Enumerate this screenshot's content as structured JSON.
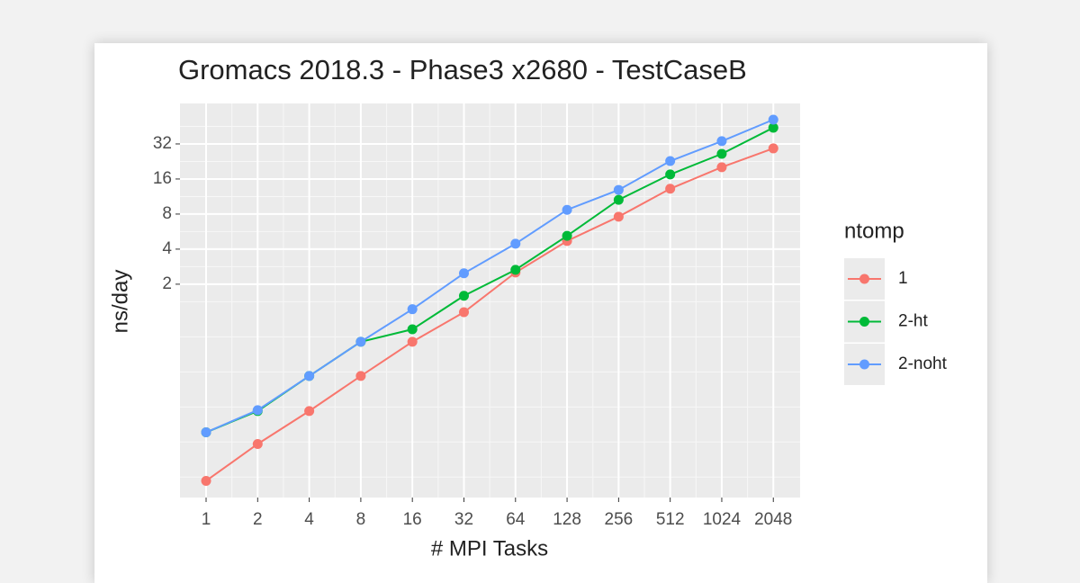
{
  "chart_data": {
    "type": "line",
    "title": "Gromacs 2018.3 - Phase3 x2680 - TestCaseB",
    "x_label": "# MPI Tasks",
    "y_label": "ns/day",
    "legend_title": "ntomp",
    "x": [
      1,
      2,
      4,
      8,
      16,
      32,
      64,
      128,
      256,
      512,
      1024,
      2048
    ],
    "series": [
      {
        "name": "1",
        "color": "#F8766D",
        "values": [
          0.041,
          0.085,
          0.163,
          0.326,
          0.641,
          1.15,
          2.52,
          4.7,
          7.6,
          13.2,
          20.2,
          29.3
        ]
      },
      {
        "name": "2-ht",
        "color": "#00BA38",
        "values": [
          0.107,
          0.163,
          0.326,
          0.641,
          0.82,
          1.59,
          2.66,
          5.2,
          10.6,
          17.5,
          26.3,
          44.1
        ]
      },
      {
        "name": "2-noht",
        "color": "#619CFF",
        "values": [
          0.107,
          0.166,
          0.326,
          0.641,
          1.22,
          2.48,
          4.45,
          8.7,
          12.9,
          22.8,
          33.8,
          51.7
        ]
      }
    ],
    "xlim": [
      0.704,
      2935
    ],
    "ylim": [
      0.0295,
      71.2
    ],
    "xticks": [
      1,
      2,
      4,
      8,
      16,
      32,
      64,
      128,
      256,
      512,
      1024,
      2048
    ],
    "yticks": [
      2,
      4,
      8,
      16,
      32
    ],
    "log_x": true,
    "log_y": true,
    "grid": true
  }
}
